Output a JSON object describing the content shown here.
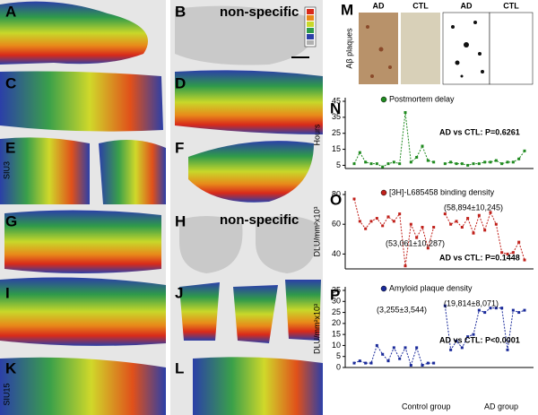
{
  "panel_letters": [
    "A",
    "B",
    "C",
    "D",
    "E",
    "F",
    "G",
    "H",
    "I",
    "J",
    "K",
    "L",
    "M",
    "N",
    "O",
    "P"
  ],
  "nonspecific": [
    "non-specific",
    "non-specific"
  ],
  "row_labels": [
    "SIU3",
    "SIU15"
  ],
  "m_panel": {
    "columns": [
      "AD",
      "CTL",
      "AD",
      "CTL"
    ],
    "ylabel": "Aβ plaques"
  },
  "chart_data": [
    {
      "type": "line",
      "ylabel": "Hours",
      "categories": [
        null,
        null,
        null,
        null,
        null,
        null,
        null,
        null,
        null,
        null,
        null,
        null,
        null,
        null,
        null,
        null,
        null,
        null,
        null,
        null,
        null,
        null,
        null,
        null,
        null,
        null,
        null,
        null,
        null,
        null,
        null
      ],
      "series": [
        {
          "name": "Postmortem delay",
          "color": "#1f8a1f",
          "values": [
            6,
            13,
            7,
            6,
            6,
            4,
            6,
            7,
            6,
            38,
            7,
            10,
            17,
            8,
            7,
            null,
            6,
            7,
            6,
            6,
            5,
            6,
            6,
            7,
            7,
            8,
            6,
            7,
            7,
            9,
            14
          ]
        }
      ],
      "annotations": [
        "AD vs CTL: P=0.6261"
      ],
      "ylim": [
        3,
        45
      ],
      "yticks": [
        5,
        15,
        25,
        35,
        45
      ]
    },
    {
      "type": "line",
      "ylabel": "DLU/mm²x10³",
      "categories": [
        null,
        null,
        null,
        null,
        null,
        null,
        null,
        null,
        null,
        null,
        null,
        null,
        null,
        null,
        null,
        null,
        null,
        null,
        null,
        null,
        null,
        null,
        null,
        null,
        null,
        null,
        null,
        null,
        null,
        null,
        null
      ],
      "series": [
        {
          "name": "[3H]-L685458 binding density",
          "color": "#c0201a",
          "values": [
            77,
            62,
            57,
            62,
            64,
            59,
            65,
            62,
            67,
            32,
            60,
            51,
            58,
            44,
            58,
            null,
            67,
            60,
            62,
            58,
            64,
            54,
            66,
            56,
            68,
            60,
            41,
            40,
            41,
            48,
            36
          ]
        }
      ],
      "annotations": [
        "(58,894±10,245)",
        "(53,061±10,287)",
        "AD vs CTL: P=0.1448"
      ],
      "ylim": [
        30,
        80
      ],
      "yticks": [
        40,
        60,
        80
      ]
    },
    {
      "type": "line",
      "ylabel": "DLU/mm²x10³",
      "categories": [
        null,
        null,
        null,
        null,
        null,
        null,
        null,
        null,
        null,
        null,
        null,
        null,
        null,
        null,
        null,
        null,
        null,
        null,
        null,
        null,
        null,
        null,
        null,
        null,
        null,
        null,
        null,
        null,
        null,
        null,
        null
      ],
      "series": [
        {
          "name": "Amyloid plaque density",
          "color": "#1a2a9a",
          "values": [
            2,
            3,
            2,
            2,
            10,
            6,
            3,
            9,
            4,
            9,
            1,
            9,
            1,
            2,
            2,
            null,
            28,
            8,
            12,
            9,
            14,
            15,
            26,
            25,
            27,
            27,
            27,
            8,
            26,
            25,
            26
          ]
        }
      ],
      "annotations": [
        "(3,255±3,544)",
        "(19,814±8,071)",
        "AD vs CTL: P<0.0001",
        "Control group",
        "AD group"
      ],
      "ylim": [
        0,
        35
      ],
      "yticks": [
        0,
        5,
        10,
        15,
        20,
        25,
        30,
        35
      ]
    }
  ]
}
